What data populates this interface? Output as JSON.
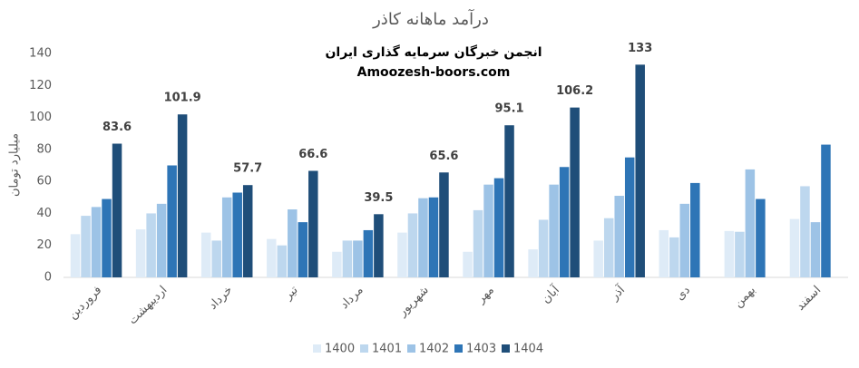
{
  "chart_data": {
    "type": "bar",
    "title": "درآمد ماهانه کاذر",
    "subtitle": [
      "انجمن خبرگان سرمایه گذاری ایران",
      "Amoozesh-boors.com"
    ],
    "y_label": "میلیارد تومان",
    "categories": [
      "فروردین",
      "اردیبهشت",
      "خرداد",
      "تیر",
      "مرداد",
      "شهریور",
      "مهر",
      "آبان",
      "آذر",
      "دی",
      "بهمن",
      "اسفند"
    ],
    "series": [
      {
        "name": "1400",
        "color": "#deebf7",
        "values": [
          27,
          30,
          28,
          24,
          16,
          28,
          16,
          17.5,
          23,
          29.5,
          29,
          36.5
        ]
      },
      {
        "name": "1401",
        "color": "#bdd7ee",
        "values": [
          38.5,
          40,
          23,
          20,
          23,
          40,
          42,
          36,
          37,
          25,
          28.5,
          57
        ]
      },
      {
        "name": "1402",
        "color": "#9dc3e6",
        "values": [
          44,
          46,
          50,
          42.5,
          23,
          49.5,
          58,
          58,
          51,
          46,
          67.5,
          34.5
        ]
      },
      {
        "name": "1403",
        "color": "#2e75b6",
        "values": [
          49,
          70,
          53,
          34.5,
          29.5,
          50,
          62,
          69,
          75,
          59,
          49,
          83
        ]
      },
      {
        "name": "1404",
        "color": "#1f4e79",
        "values": [
          83.6,
          101.9,
          57.7,
          66.6,
          39.5,
          65.6,
          95.1,
          106.2,
          133,
          null,
          null,
          null
        ],
        "data_labels": true
      }
    ],
    "ylim": [
      0,
      140
    ],
    "yticks": [
      0,
      20,
      40,
      60,
      80,
      100,
      120,
      140
    ],
    "grid": false,
    "legend": "bottom"
  }
}
